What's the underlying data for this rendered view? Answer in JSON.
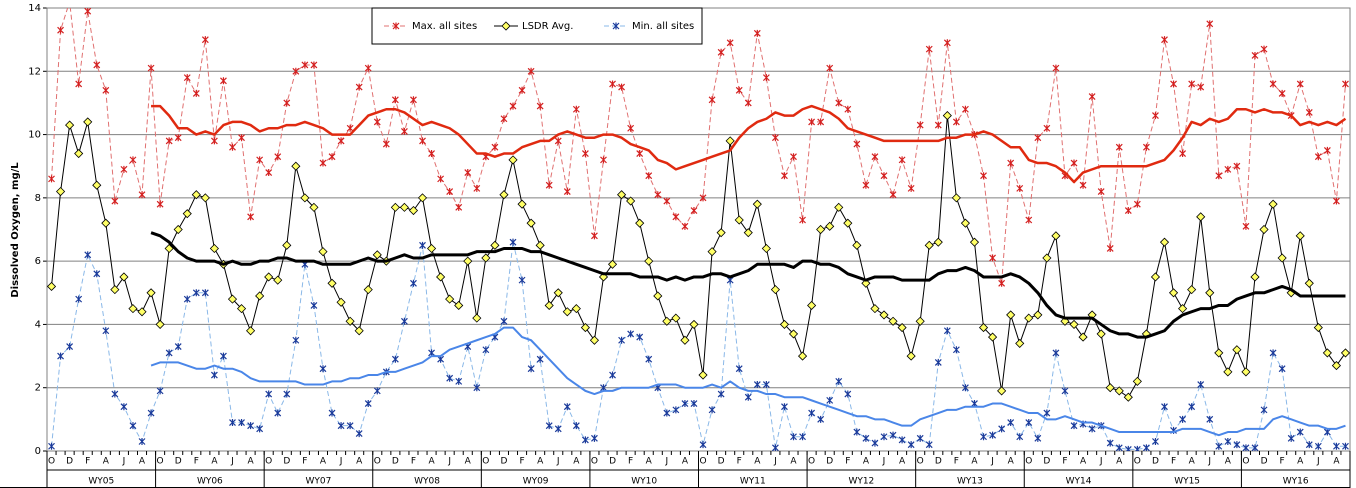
{
  "chart_data": {
    "type": "line",
    "y_label": "Dissolved Oxygen, mg/L",
    "ylim": [
      0,
      14
    ],
    "yticks": [
      0,
      2,
      4,
      6,
      8,
      10,
      12,
      14
    ],
    "grid": true,
    "legend": "top",
    "categories": [
      "O",
      null,
      "D",
      null,
      "F",
      null,
      "A",
      null,
      "J",
      null,
      "A",
      null,
      "O",
      null,
      "D",
      null,
      "F",
      null,
      "A",
      null,
      "J",
      null,
      "A",
      null,
      "O",
      null,
      "D",
      null,
      "F",
      null,
      "A",
      null,
      "J",
      null,
      "A",
      null,
      "O",
      null,
      "D",
      null,
      "F",
      null,
      "A",
      null,
      "J",
      null,
      "A",
      null,
      "O",
      null,
      "D",
      null,
      "F",
      null,
      "A",
      null,
      "J",
      null,
      "A",
      null,
      "O",
      null,
      "D",
      null,
      "F",
      null,
      "A",
      null,
      "J",
      null,
      "A",
      null,
      "O",
      null,
      "D",
      null,
      "F",
      null,
      "A",
      null,
      "J",
      null,
      "A",
      null,
      "O",
      null,
      "D",
      null,
      "F",
      null,
      "A",
      null,
      "J",
      null,
      "A",
      null,
      "O",
      null,
      "D",
      null,
      "F",
      null,
      "A",
      null,
      "J",
      null,
      "A",
      null,
      "O",
      null,
      "D",
      null,
      "F",
      null,
      "A",
      null,
      "J",
      null,
      "A",
      null,
      "O",
      null,
      "D",
      null,
      "F",
      null,
      "A",
      null,
      "J",
      null,
      "A",
      null,
      "O",
      null,
      "D",
      null,
      "F",
      null,
      "A",
      null,
      "J",
      null,
      "A",
      null
    ],
    "groups": [
      "WY05",
      "WY06",
      "WY07",
      "WY08",
      "WY09",
      "WY10",
      "WY11",
      "WY12",
      "WY13",
      "WY14",
      "WY15",
      "WY16"
    ],
    "series": [
      {
        "name": "Max. all sites",
        "color": "#e07070",
        "marker_color": "#d42020",
        "marker": "star",
        "dashed": true,
        "values": [
          8.6,
          13.3,
          14.2,
          11.6,
          13.9,
          12.2,
          11.4,
          7.9,
          8.9,
          9.2,
          8.1,
          12.1,
          7.8,
          9.8,
          9.9,
          11.8,
          11.3,
          13.0,
          9.8,
          11.7,
          9.6,
          9.9,
          7.4,
          9.2,
          8.8,
          9.3,
          11.0,
          12.0,
          12.2,
          12.2,
          9.1,
          9.3,
          9.8,
          10.2,
          11.5,
          12.1,
          10.4,
          9.7,
          11.1,
          10.1,
          11.1,
          9.8,
          9.4,
          8.6,
          8.2,
          7.7,
          8.8,
          8.3,
          9.3,
          9.6,
          10.5,
          10.9,
          11.4,
          12.0,
          10.9,
          8.4,
          9.8,
          8.2,
          10.8,
          9.4,
          6.8,
          9.2,
          11.6,
          11.5,
          10.2,
          9.4,
          8.7,
          8.1,
          7.9,
          7.4,
          7.1,
          7.6,
          8.0,
          11.1,
          12.6,
          12.9,
          11.4,
          11.0,
          13.2,
          11.8,
          9.9,
          8.7,
          9.3,
          7.3,
          10.4,
          10.4,
          12.1,
          11.0,
          10.8,
          9.7,
          8.4,
          9.3,
          8.7,
          8.1,
          9.2,
          8.3,
          10.3,
          12.7,
          10.3,
          12.9,
          10.4,
          10.8,
          10.0,
          8.7,
          6.1,
          5.3,
          9.1,
          8.3,
          7.3,
          9.9,
          10.2,
          12.1,
          8.7,
          9.1,
          8.4,
          11.2,
          8.2,
          6.4,
          9.6,
          7.6,
          7.8,
          9.6,
          10.6,
          13.0,
          11.6,
          9.4,
          11.6,
          11.5,
          13.5,
          8.7,
          8.9,
          9.0,
          7.1,
          12.5,
          12.7,
          11.6,
          11.3,
          10.6,
          11.6,
          10.7,
          9.3,
          9.5,
          7.9,
          11.6
        ]
      },
      {
        "name": "LSDR Avg.",
        "color": "#000000",
        "marker_color": "#ffff66",
        "marker": "diamond",
        "dashed": false,
        "values": [
          5.2,
          8.2,
          10.3,
          9.4,
          10.4,
          8.4,
          7.2,
          5.1,
          5.5,
          4.5,
          4.4,
          5.0,
          4.0,
          6.4,
          7.0,
          7.5,
          8.1,
          8.0,
          6.4,
          5.9,
          4.8,
          4.5,
          3.8,
          4.9,
          5.5,
          5.4,
          6.5,
          9.0,
          8.0,
          7.7,
          6.3,
          5.3,
          4.7,
          4.1,
          3.8,
          5.1,
          6.2,
          6.0,
          7.7,
          7.7,
          7.6,
          8.0,
          6.4,
          5.5,
          4.8,
          4.6,
          6.0,
          4.2,
          6.1,
          6.5,
          8.1,
          9.2,
          7.8,
          7.2,
          6.5,
          4.6,
          5.0,
          4.4,
          4.5,
          3.9,
          3.5,
          5.5,
          5.9,
          8.1,
          7.9,
          7.2,
          6.0,
          4.9,
          4.1,
          4.2,
          3.5,
          4.0,
          2.4,
          6.3,
          6.9,
          9.8,
          7.3,
          6.9,
          7.8,
          6.4,
          5.1,
          4.0,
          3.7,
          3.0,
          4.6,
          7.0,
          7.1,
          7.7,
          7.2,
          6.5,
          5.3,
          4.5,
          4.3,
          4.1,
          3.9,
          3.0,
          4.1,
          6.5,
          6.6,
          10.6,
          8.0,
          7.2,
          6.6,
          3.9,
          3.6,
          1.9,
          4.3,
          3.4,
          4.2,
          4.3,
          6.1,
          6.8,
          4.1,
          4.0,
          3.6,
          4.3,
          3.7,
          2.0,
          1.9,
          1.7,
          2.2,
          3.7,
          5.5,
          6.6,
          5.0,
          4.5,
          5.1,
          7.4,
          5.0,
          3.1,
          2.5,
          3.2,
          2.5,
          5.5,
          7.0,
          7.8,
          6.1,
          5.0,
          6.8,
          5.3,
          3.9,
          3.1,
          2.7,
          3.1
        ]
      },
      {
        "name": "Min. all sites",
        "color": "#8ab8e8",
        "marker_color": "#1a3a9a",
        "marker": "star",
        "dashed": true,
        "values": [
          0.15,
          3.0,
          3.3,
          4.8,
          6.2,
          5.6,
          3.8,
          1.8,
          1.4,
          0.8,
          0.3,
          1.2,
          1.9,
          3.1,
          3.3,
          4.8,
          5.0,
          5.0,
          2.4,
          3.0,
          0.9,
          0.9,
          0.8,
          0.7,
          1.8,
          1.2,
          1.8,
          3.5,
          5.9,
          4.6,
          2.6,
          1.2,
          0.8,
          0.8,
          0.55,
          1.5,
          1.9,
          2.5,
          2.9,
          4.1,
          5.3,
          6.5,
          3.1,
          2.9,
          2.3,
          2.2,
          3.3,
          2.0,
          3.2,
          3.6,
          4.1,
          6.6,
          5.4,
          2.6,
          2.9,
          0.8,
          0.7,
          1.4,
          0.8,
          0.35,
          0.4,
          2.0,
          2.4,
          3.5,
          3.7,
          3.6,
          2.9,
          2.0,
          1.2,
          1.3,
          1.5,
          1.5,
          0.2,
          1.3,
          1.8,
          5.4,
          2.6,
          1.7,
          2.1,
          2.1,
          0.1,
          1.4,
          0.45,
          0.45,
          1.2,
          1.0,
          1.6,
          2.2,
          1.8,
          0.6,
          0.4,
          0.25,
          0.45,
          0.5,
          0.35,
          0.2,
          0.4,
          0.2,
          2.8,
          3.8,
          3.2,
          2.0,
          1.5,
          0.45,
          0.5,
          0.7,
          0.9,
          0.45,
          0.9,
          0.4,
          1.2,
          3.1,
          1.9,
          0.8,
          0.85,
          0.7,
          0.8,
          0.25,
          0.1,
          0.05,
          0.05,
          0.1,
          0.3,
          1.4,
          0.65,
          1.0,
          1.4,
          2.1,
          1.0,
          0.15,
          0.3,
          0.2,
          0.1,
          0.1,
          1.3,
          3.1,
          2.6,
          0.4,
          0.6,
          0.2,
          0.15,
          0.6,
          0.15,
          0.15
        ]
      },
      {
        "color": "#e02a10",
        "line_width": 2.5,
        "values": [
          null,
          null,
          null,
          null,
          null,
          null,
          null,
          null,
          null,
          null,
          null,
          10.9,
          10.9,
          10.6,
          10.2,
          10.2,
          10.0,
          10.1,
          10.0,
          10.3,
          10.4,
          10.4,
          10.3,
          10.1,
          10.2,
          10.2,
          10.3,
          10.3,
          10.4,
          10.3,
          10.2,
          10.0,
          10.0,
          10.0,
          10.3,
          10.6,
          10.7,
          10.8,
          10.8,
          10.7,
          10.5,
          10.3,
          10.4,
          10.3,
          10.2,
          10.0,
          9.7,
          9.4,
          9.4,
          9.3,
          9.4,
          9.4,
          9.6,
          9.7,
          9.8,
          9.8,
          10.0,
          10.1,
          10.0,
          9.9,
          9.9,
          10.0,
          10.0,
          9.9,
          9.7,
          9.6,
          9.5,
          9.2,
          9.1,
          8.9,
          9.0,
          9.1,
          9.2,
          9.3,
          9.4,
          9.5,
          9.9,
          10.2,
          10.4,
          10.5,
          10.7,
          10.6,
          10.6,
          10.8,
          10.9,
          10.8,
          10.7,
          10.5,
          10.2,
          10.1,
          10.0,
          9.9,
          9.8,
          9.8,
          9.8,
          9.8,
          9.8,
          9.8,
          9.8,
          9.9,
          9.9,
          10.0,
          10.0,
          10.1,
          10.0,
          9.8,
          9.6,
          9.6,
          9.2,
          9.1,
          9.1,
          9.0,
          8.8,
          8.5,
          8.8,
          8.9,
          9.0,
          9.0,
          9.0,
          9.0,
          9.0,
          9.0,
          9.1,
          9.2,
          9.5,
          9.9,
          10.4,
          10.3,
          10.5,
          10.4,
          10.5,
          10.8,
          10.8,
          10.7,
          10.8,
          10.7,
          10.7,
          10.6,
          10.3,
          10.4,
          10.3,
          10.4,
          10.3,
          10.5
        ]
      },
      {
        "color": "#000000",
        "line_width": 3,
        "values": [
          null,
          null,
          null,
          null,
          null,
          null,
          null,
          null,
          null,
          null,
          null,
          6.9,
          6.8,
          6.6,
          6.3,
          6.1,
          6.0,
          6.0,
          6.0,
          5.9,
          6.0,
          5.9,
          5.9,
          6.0,
          6.0,
          6.1,
          6.1,
          6.0,
          6.0,
          6.0,
          5.9,
          5.9,
          5.9,
          5.9,
          6.0,
          6.1,
          6.0,
          6.0,
          6.1,
          6.2,
          6.1,
          6.1,
          6.2,
          6.2,
          6.2,
          6.2,
          6.2,
          6.3,
          6.3,
          6.3,
          6.4,
          6.4,
          6.4,
          6.3,
          6.3,
          6.2,
          6.1,
          6.0,
          5.9,
          5.8,
          5.7,
          5.6,
          5.6,
          5.6,
          5.6,
          5.5,
          5.5,
          5.5,
          5.4,
          5.5,
          5.4,
          5.5,
          5.5,
          5.6,
          5.6,
          5.5,
          5.6,
          5.7,
          5.9,
          5.9,
          5.9,
          5.9,
          5.8,
          6.0,
          6.0,
          5.9,
          5.9,
          5.8,
          5.6,
          5.5,
          5.4,
          5.5,
          5.5,
          5.5,
          5.4,
          5.4,
          5.4,
          5.4,
          5.6,
          5.7,
          5.7,
          5.8,
          5.7,
          5.5,
          5.5,
          5.5,
          5.6,
          5.5,
          5.3,
          5.0,
          4.6,
          4.3,
          4.2,
          4.2,
          4.2,
          4.2,
          4.0,
          3.8,
          3.7,
          3.7,
          3.6,
          3.6,
          3.7,
          3.8,
          4.1,
          4.3,
          4.4,
          4.5,
          4.5,
          4.6,
          4.6,
          4.8,
          4.9,
          5.0,
          5.0,
          5.1,
          5.2,
          5.1,
          4.9,
          4.9,
          4.9,
          4.9,
          4.9,
          4.9
        ]
      },
      {
        "color": "#4a86e8",
        "line_width": 2,
        "values": [
          null,
          null,
          null,
          null,
          null,
          null,
          null,
          null,
          null,
          null,
          null,
          2.7,
          2.8,
          2.8,
          2.8,
          2.7,
          2.6,
          2.6,
          2.7,
          2.6,
          2.6,
          2.5,
          2.3,
          2.2,
          2.2,
          2.2,
          2.2,
          2.2,
          2.1,
          2.1,
          2.1,
          2.2,
          2.2,
          2.3,
          2.3,
          2.4,
          2.4,
          2.5,
          2.5,
          2.6,
          2.7,
          2.8,
          3.0,
          3.0,
          3.2,
          3.3,
          3.4,
          3.5,
          3.6,
          3.7,
          3.9,
          3.9,
          3.6,
          3.5,
          3.2,
          2.9,
          2.6,
          2.3,
          2.1,
          1.9,
          1.8,
          1.9,
          1.9,
          2.0,
          2.0,
          2.0,
          2.0,
          2.1,
          2.1,
          2.1,
          2.0,
          2.0,
          2.0,
          2.1,
          2.0,
          2.2,
          2.0,
          1.9,
          1.9,
          1.8,
          1.8,
          1.7,
          1.7,
          1.7,
          1.6,
          1.5,
          1.4,
          1.3,
          1.2,
          1.1,
          1.1,
          1.0,
          1.0,
          0.9,
          0.8,
          0.8,
          1.0,
          1.1,
          1.2,
          1.3,
          1.3,
          1.4,
          1.4,
          1.4,
          1.5,
          1.5,
          1.4,
          1.3,
          1.2,
          1.2,
          1.0,
          1.0,
          1.1,
          1.0,
          0.9,
          0.9,
          0.8,
          0.7,
          0.6,
          0.6,
          0.6,
          0.6,
          0.6,
          0.6,
          0.6,
          0.7,
          0.7,
          0.7,
          0.6,
          0.5,
          0.6,
          0.6,
          0.7,
          0.7,
          0.7,
          1.0,
          1.1,
          1.0,
          0.9,
          0.8,
          0.8,
          0.7,
          0.7,
          0.8
        ]
      }
    ]
  }
}
